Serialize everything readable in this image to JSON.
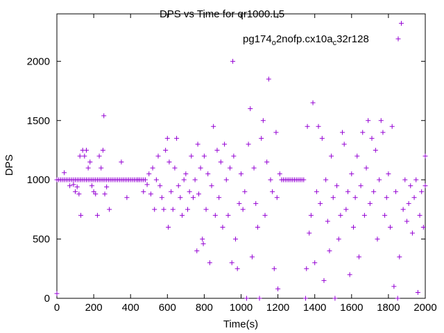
{
  "chart_data": {
    "type": "scatter",
    "title": "DPS vs Time for qr1000.L5",
    "xlabel": "Time(s)",
    "ylabel": "DPS",
    "xlim": [
      0,
      2000
    ],
    "ylim": [
      0,
      2400
    ],
    "xticks": [
      "0",
      "200",
      "400",
      "600",
      "800",
      "1000",
      "1200",
      "1400",
      "1600",
      "1800",
      "2000"
    ],
    "yticks": [
      "0",
      "500",
      "1000",
      "1500",
      "2000"
    ],
    "grid": false,
    "legend_position": "top-right",
    "marker": "plus",
    "color": "#9400d3",
    "series": [
      {
        "name": "pg174_o2nofp.cx10a_c32r128",
        "legend": {
          "base": "pg174",
          "sub1": "o",
          "mid": "2nofp.cx10a",
          "sub2": "c",
          "tail": "32r128"
        },
        "points": [
          [
            0,
            40
          ],
          [
            0,
            1000
          ],
          [
            10,
            1000
          ],
          [
            20,
            1000
          ],
          [
            30,
            1000
          ],
          [
            40,
            1000
          ],
          [
            50,
            1000
          ],
          [
            60,
            1000
          ],
          [
            70,
            1000
          ],
          [
            80,
            1000
          ],
          [
            90,
            1000
          ],
          [
            100,
            1000
          ],
          [
            110,
            1000
          ],
          [
            120,
            1000
          ],
          [
            130,
            1000
          ],
          [
            140,
            1000
          ],
          [
            150,
            1000
          ],
          [
            160,
            1000
          ],
          [
            170,
            1000
          ],
          [
            180,
            1000
          ],
          [
            190,
            1000
          ],
          [
            200,
            1000
          ],
          [
            210,
            1000
          ],
          [
            220,
            1000
          ],
          [
            230,
            1000
          ],
          [
            240,
            1000
          ],
          [
            250,
            1000
          ],
          [
            260,
            1000
          ],
          [
            270,
            1000
          ],
          [
            280,
            1000
          ],
          [
            290,
            1000
          ],
          [
            300,
            1000
          ],
          [
            310,
            1000
          ],
          [
            320,
            1000
          ],
          [
            330,
            1000
          ],
          [
            340,
            1000
          ],
          [
            350,
            1000
          ],
          [
            360,
            1000
          ],
          [
            370,
            1000
          ],
          [
            380,
            1000
          ],
          [
            390,
            1000
          ],
          [
            400,
            1000
          ],
          [
            410,
            1000
          ],
          [
            420,
            1000
          ],
          [
            430,
            1000
          ],
          [
            440,
            1000
          ],
          [
            450,
            1000
          ],
          [
            460,
            1000
          ],
          [
            470,
            1000
          ],
          [
            480,
            1000
          ],
          [
            40,
            1060
          ],
          [
            70,
            950
          ],
          [
            90,
            960
          ],
          [
            100,
            900
          ],
          [
            110,
            940
          ],
          [
            120,
            880
          ],
          [
            125,
            1200
          ],
          [
            130,
            700
          ],
          [
            140,
            1250
          ],
          [
            150,
            1200
          ],
          [
            160,
            1250
          ],
          [
            170,
            1100
          ],
          [
            180,
            1150
          ],
          [
            190,
            950
          ],
          [
            200,
            900
          ],
          [
            210,
            880
          ],
          [
            220,
            700
          ],
          [
            230,
            1200
          ],
          [
            240,
            1100
          ],
          [
            250,
            1250
          ],
          [
            255,
            1540
          ],
          [
            260,
            880
          ],
          [
            270,
            940
          ],
          [
            285,
            750
          ],
          [
            350,
            1150
          ],
          [
            380,
            850
          ],
          [
            440,
            1000
          ],
          [
            470,
            900
          ],
          [
            490,
            960
          ],
          [
            500,
            1050
          ],
          [
            510,
            880
          ],
          [
            520,
            1100
          ],
          [
            530,
            750
          ],
          [
            540,
            1000
          ],
          [
            550,
            1200
          ],
          [
            560,
            950
          ],
          [
            570,
            850
          ],
          [
            580,
            750
          ],
          [
            590,
            1250
          ],
          [
            600,
            1350
          ],
          [
            605,
            600
          ],
          [
            610,
            1150
          ],
          [
            620,
            900
          ],
          [
            630,
            750
          ],
          [
            640,
            1100
          ],
          [
            650,
            1350
          ],
          [
            660,
            950
          ],
          [
            670,
            850
          ],
          [
            680,
            700
          ],
          [
            690,
            1000
          ],
          [
            700,
            1050
          ],
          [
            710,
            750
          ],
          [
            720,
            900
          ],
          [
            730,
            1200
          ],
          [
            740,
            850
          ],
          [
            750,
            1000
          ],
          [
            760,
            400
          ],
          [
            765,
            1300
          ],
          [
            770,
            880
          ],
          [
            780,
            1100
          ],
          [
            790,
            500
          ],
          [
            795,
            460
          ],
          [
            800,
            1200
          ],
          [
            810,
            750
          ],
          [
            820,
            1050
          ],
          [
            830,
            300
          ],
          [
            840,
            950
          ],
          [
            850,
            1450
          ],
          [
            860,
            700
          ],
          [
            870,
            1250
          ],
          [
            880,
            850
          ],
          [
            890,
            1150
          ],
          [
            900,
            600
          ],
          [
            910,
            1300
          ],
          [
            920,
            1000
          ],
          [
            930,
            700
          ],
          [
            940,
            1100
          ],
          [
            950,
            300
          ],
          [
            955,
            2000
          ],
          [
            960,
            1200
          ],
          [
            970,
            500
          ],
          [
            980,
            250
          ],
          [
            990,
            800
          ],
          [
            1000,
            1050
          ],
          [
            1010,
            750
          ],
          [
            1020,
            900
          ],
          [
            1030,
            0
          ],
          [
            1040,
            1300
          ],
          [
            1050,
            1600
          ],
          [
            1060,
            350
          ],
          [
            1070,
            1100
          ],
          [
            1080,
            800
          ],
          [
            1090,
            600
          ],
          [
            1100,
            0
          ],
          [
            1110,
            1350
          ],
          [
            1120,
            1500
          ],
          [
            1130,
            700
          ],
          [
            1140,
            1150
          ],
          [
            1150,
            1850
          ],
          [
            1160,
            1000
          ],
          [
            1170,
            900
          ],
          [
            1180,
            250
          ],
          [
            1190,
            1400
          ],
          [
            1200,
            80
          ],
          [
            1195,
            850
          ],
          [
            1210,
            1050
          ],
          [
            1220,
            1000
          ],
          [
            1230,
            1000
          ],
          [
            1240,
            1000
          ],
          [
            1250,
            1000
          ],
          [
            1260,
            1000
          ],
          [
            1270,
            1000
          ],
          [
            1280,
            1000
          ],
          [
            1290,
            1000
          ],
          [
            1300,
            1000
          ],
          [
            1310,
            1000
          ],
          [
            1320,
            1000
          ],
          [
            1330,
            1000
          ],
          [
            1340,
            1000
          ],
          [
            1350,
            0
          ],
          [
            1355,
            250
          ],
          [
            1360,
            1450
          ],
          [
            1370,
            550
          ],
          [
            1380,
            700
          ],
          [
            1390,
            1650
          ],
          [
            1400,
            300
          ],
          [
            1410,
            900
          ],
          [
            1420,
            1450
          ],
          [
            1430,
            800
          ],
          [
            1440,
            1350
          ],
          [
            1450,
            150
          ],
          [
            1460,
            1000
          ],
          [
            1470,
            650
          ],
          [
            1480,
            400
          ],
          [
            1490,
            1200
          ],
          [
            1500,
            850
          ],
          [
            1510,
            0
          ],
          [
            1520,
            950
          ],
          [
            1530,
            500
          ],
          [
            1540,
            700
          ],
          [
            1550,
            1400
          ],
          [
            1560,
            1300
          ],
          [
            1570,
            750
          ],
          [
            1580,
            900
          ],
          [
            1590,
            200
          ],
          [
            1600,
            1050
          ],
          [
            1610,
            600
          ],
          [
            1620,
            850
          ],
          [
            1630,
            1200
          ],
          [
            1640,
            350
          ],
          [
            1650,
            950
          ],
          [
            1660,
            1400
          ],
          [
            1670,
            700
          ],
          [
            1680,
            1100
          ],
          [
            1690,
            1500
          ],
          [
            1700,
            800
          ],
          [
            1710,
            1350
          ],
          [
            1720,
            900
          ],
          [
            1730,
            1250
          ],
          [
            1740,
            500
          ],
          [
            1750,
            1000
          ],
          [
            1760,
            1500
          ],
          [
            1770,
            1400
          ],
          [
            1780,
            700
          ],
          [
            1790,
            850
          ],
          [
            1800,
            1050
          ],
          [
            1810,
            600
          ],
          [
            1820,
            1450
          ],
          [
            1830,
            100
          ],
          [
            1840,
            900
          ],
          [
            1850,
            0
          ],
          [
            1860,
            350
          ],
          [
            1870,
            2320
          ],
          [
            1880,
            750
          ],
          [
            1890,
            1000
          ],
          [
            1900,
            650
          ],
          [
            1910,
            800
          ],
          [
            1920,
            950
          ],
          [
            1930,
            550
          ],
          [
            1940,
            850
          ],
          [
            1950,
            1000
          ],
          [
            1960,
            50
          ],
          [
            1970,
            700
          ],
          [
            1980,
            900
          ],
          [
            1990,
            600
          ],
          [
            2000,
            1200
          ],
          [
            2000,
            950
          ]
        ]
      }
    ]
  }
}
